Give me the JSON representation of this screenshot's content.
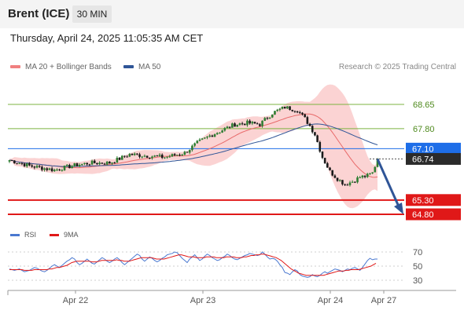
{
  "header": {
    "instrument": "Brent (ICE)",
    "interval": "30 MIN",
    "datetime": "Thursday, April 24, 2025 11:05:35 AM CET"
  },
  "legend": {
    "ma20_label": "MA 20 + Bollinger Bands",
    "ma20_color": "#f08080",
    "ma50_label": "MA 50",
    "ma50_color": "#2f5597",
    "credit": "Research © 2025 Trading Central"
  },
  "rsi_legend": {
    "rsi_label": "RSI",
    "rsi_color": "#4a78d0",
    "ma_label": "9MA",
    "ma_color": "#e01818"
  },
  "chart_data": {
    "type": "candlestick",
    "levels": [
      {
        "value": 68.65,
        "label": "68.65",
        "kind": "resistance",
        "color": "#7cb342"
      },
      {
        "value": 67.8,
        "label": "67.80",
        "kind": "resistance",
        "color": "#7cb342"
      },
      {
        "value": 67.1,
        "label": "67.10",
        "kind": "pivot",
        "color": "#1e6ee8"
      },
      {
        "value": 65.3,
        "label": "65.30",
        "kind": "support",
        "color": "#e01818"
      },
      {
        "value": 64.8,
        "label": "64.80",
        "kind": "support",
        "color": "#e01818"
      }
    ],
    "last_price": {
      "value": 66.74,
      "label": "66.74"
    },
    "forecast": {
      "from": 66.74,
      "to": 64.8
    },
    "x_ticks": [
      "Apr 22",
      "Apr 23",
      "Apr 24",
      "Apr 27"
    ],
    "rsi": {
      "ticks": [
        {
          "value": 70,
          "label": "70"
        },
        {
          "value": 50,
          "label": "50"
        },
        {
          "value": 30,
          "label": "30"
        }
      ],
      "values": [
        46,
        45,
        44,
        45,
        46,
        44,
        42,
        43,
        44,
        46,
        48,
        47,
        45,
        43,
        42,
        44,
        47,
        50,
        52,
        50,
        48,
        51,
        54,
        57,
        59,
        62,
        60,
        55,
        52,
        54,
        57,
        60,
        57,
        54,
        53,
        56,
        59,
        62,
        60,
        57,
        55,
        57,
        60,
        62,
        59,
        55,
        52,
        55,
        58,
        61,
        64,
        67,
        65,
        60,
        57,
        60,
        63,
        61,
        58,
        56,
        58,
        61,
        63,
        66,
        67,
        68,
        70,
        69,
        65,
        61,
        58,
        55,
        60,
        63,
        66,
        62,
        58,
        60,
        64,
        67,
        65,
        62,
        60,
        58,
        59,
        62,
        64,
        67,
        65,
        62,
        60,
        59,
        61,
        63,
        65,
        66,
        68,
        67,
        66,
        65,
        66,
        70,
        67,
        63,
        60,
        61,
        60,
        57,
        52,
        48,
        41,
        40,
        38,
        42,
        45,
        43,
        38,
        36,
        35,
        34,
        35,
        38,
        36,
        35,
        37,
        40,
        42,
        40,
        42,
        44,
        46,
        45,
        44,
        42,
        44,
        46,
        45,
        47,
        48,
        46,
        44,
        48,
        53,
        58,
        61,
        59,
        60,
        60
      ],
      "ma": [
        45,
        45,
        45,
        45,
        45,
        45,
        44,
        44,
        44,
        44,
        45,
        45,
        45,
        45,
        45,
        45,
        46,
        46,
        47,
        48,
        48,
        49,
        50,
        51,
        53,
        55,
        56,
        57,
        57,
        57,
        57,
        57,
        57,
        56,
        56,
        56,
        57,
        58,
        58,
        58,
        58,
        58,
        58,
        59,
        58,
        58,
        57,
        57,
        57,
        58,
        59,
        60,
        61,
        62,
        62,
        62,
        62,
        62,
        61,
        60,
        60,
        60,
        60,
        61,
        62,
        63,
        64,
        65,
        66,
        66,
        65,
        64,
        63,
        63,
        63,
        62,
        62,
        62,
        62,
        63,
        63,
        63,
        63,
        62,
        62,
        62,
        62,
        63,
        63,
        63,
        63,
        62,
        62,
        62,
        63,
        63,
        64,
        65,
        65,
        66,
        66,
        67,
        67,
        66,
        65,
        64,
        63,
        62,
        60,
        58,
        55,
        52,
        49,
        46,
        44,
        42,
        40,
        39,
        38,
        37,
        37,
        37,
        37,
        37,
        37,
        37,
        37,
        38,
        39,
        40,
        41,
        42,
        43,
        43,
        43,
        44,
        44,
        45,
        45,
        45,
        45,
        46,
        47,
        48,
        49,
        50,
        52,
        54
      ]
    }
  }
}
